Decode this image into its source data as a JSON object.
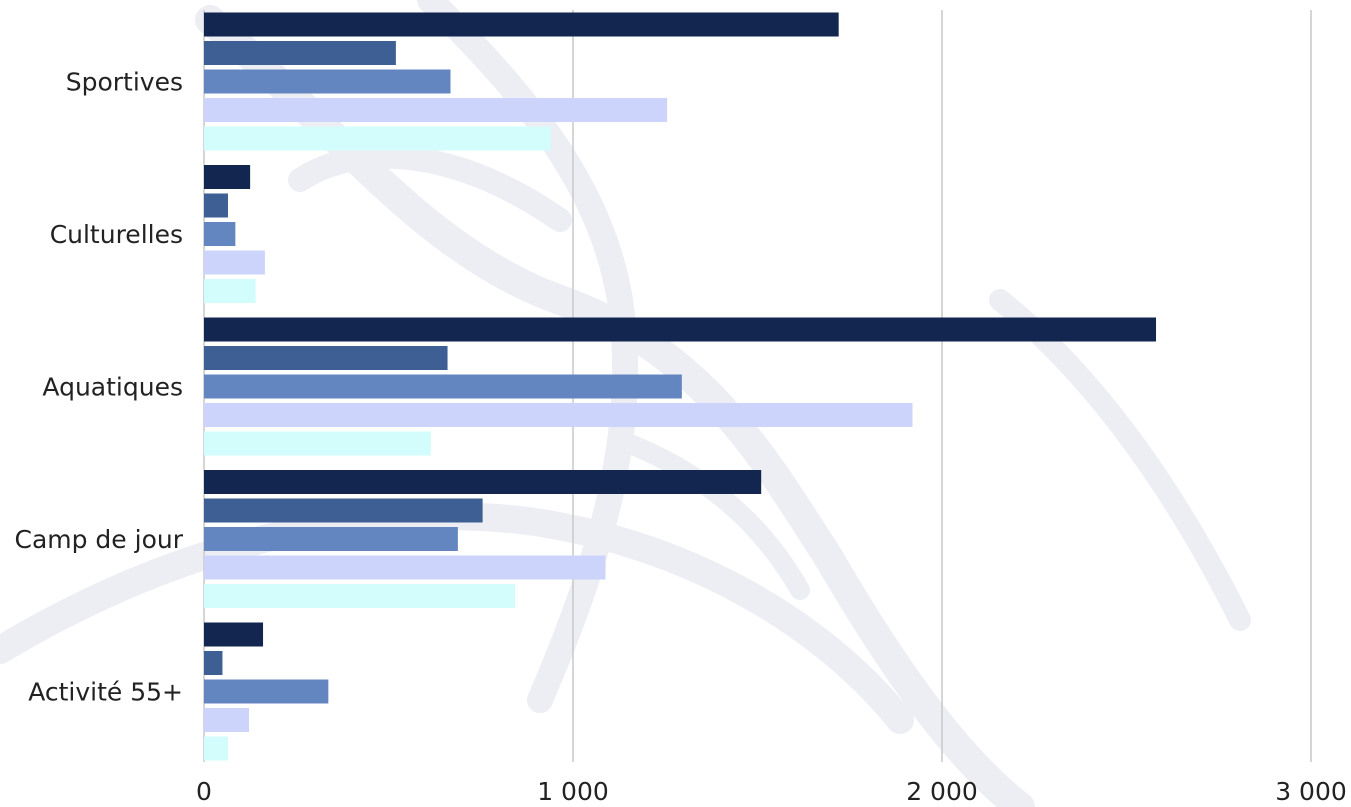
{
  "chart_data": {
    "type": "bar",
    "orientation": "horizontal",
    "title": "",
    "xlabel": "",
    "ylabel": "",
    "xlim": [
      0,
      3000
    ],
    "x_ticks": [
      0,
      1000,
      2000,
      3000
    ],
    "x_tick_labels": [
      "0",
      "1 000",
      "2 000",
      "3 000"
    ],
    "grid": true,
    "legend": "none",
    "categories": [
      "Sportives",
      "Culturelles",
      "Aquatiques",
      "Camp de jour",
      "Activité 55+"
    ],
    "series": [
      {
        "color": "#12264f",
        "values": [
          1720,
          125,
          2580,
          1510,
          160
        ]
      },
      {
        "color": "#3d5f94",
        "values": [
          520,
          65,
          660,
          755,
          50
        ]
      },
      {
        "color": "#6486c0",
        "values": [
          668,
          85,
          1295,
          688,
          337
        ]
      },
      {
        "color": "#cdd4fb",
        "values": [
          1255,
          165,
          1920,
          1088,
          122
        ]
      },
      {
        "color": "#d3fdfc",
        "values": [
          940,
          140,
          615,
          843,
          65
        ]
      }
    ]
  }
}
